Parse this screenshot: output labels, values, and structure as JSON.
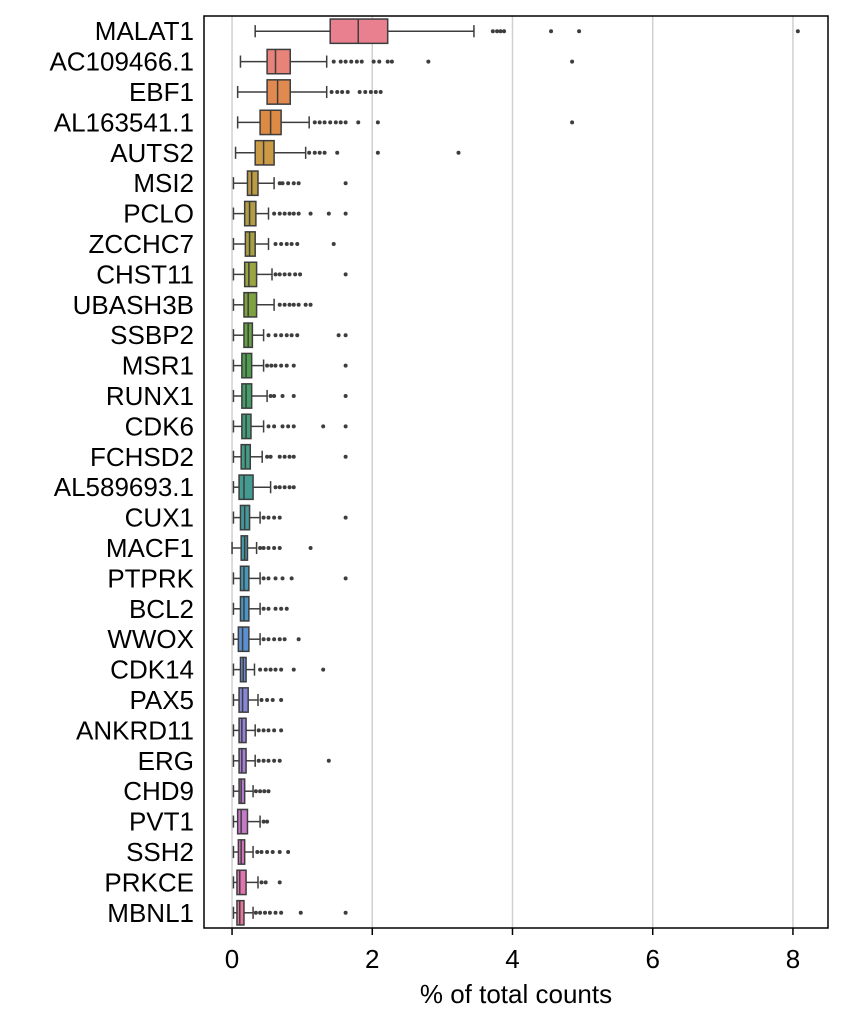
{
  "chart_data": {
    "type": "box",
    "title": "",
    "xlabel": "% of total counts",
    "ylabel": "",
    "xlim": [
      -0.4,
      8.5
    ],
    "xticks": [
      0,
      2,
      4,
      6,
      8
    ],
    "grid": "vertical",
    "legend": "none",
    "genes": [
      {
        "name": "MALAT1",
        "color": "#e8808f",
        "whisker_low": 0.33,
        "q1": 1.4,
        "median": 1.8,
        "q3": 2.22,
        "whisker_high": 3.45,
        "outliers": [
          3.72,
          3.78,
          3.83,
          3.88,
          4.55,
          4.95,
          8.07
        ]
      },
      {
        "name": "AC109466.1",
        "color": "#e8837a",
        "whisker_low": 0.12,
        "q1": 0.5,
        "median": 0.62,
        "q3": 0.83,
        "whisker_high": 1.35,
        "outliers": [
          1.45,
          1.55,
          1.62,
          1.7,
          1.78,
          1.85,
          2.02,
          2.1,
          2.22,
          2.28,
          2.8,
          4.85
        ]
      },
      {
        "name": "EBF1",
        "color": "#e08a4f",
        "whisker_low": 0.08,
        "q1": 0.5,
        "median": 0.65,
        "q3": 0.83,
        "whisker_high": 1.35,
        "outliers": [
          1.42,
          1.5,
          1.57,
          1.65,
          1.82,
          1.9,
          1.98,
          2.05,
          2.12
        ]
      },
      {
        "name": "AL163541.1",
        "color": "#dc8a44",
        "whisker_low": 0.08,
        "q1": 0.4,
        "median": 0.55,
        "q3": 0.7,
        "whisker_high": 1.1,
        "outliers": [
          1.18,
          1.25,
          1.32,
          1.4,
          1.48,
          1.55,
          1.62,
          1.8,
          2.08,
          4.85
        ]
      },
      {
        "name": "AUTS2",
        "color": "#cb9a45",
        "whisker_low": 0.05,
        "q1": 0.33,
        "median": 0.45,
        "q3": 0.6,
        "whisker_high": 1.05,
        "outliers": [
          1.1,
          1.18,
          1.25,
          1.32,
          1.5,
          2.08,
          3.23
        ]
      },
      {
        "name": "MSI2",
        "color": "#bd9b44",
        "whisker_low": 0.02,
        "q1": 0.22,
        "median": 0.28,
        "q3": 0.37,
        "whisker_high": 0.6,
        "outliers": [
          0.68,
          0.72,
          0.8,
          0.88,
          0.95,
          1.62
        ]
      },
      {
        "name": "PCLO",
        "color": "#b29d43",
        "whisker_low": 0.02,
        "q1": 0.18,
        "median": 0.25,
        "q3": 0.34,
        "whisker_high": 0.52,
        "outliers": [
          0.6,
          0.68,
          0.75,
          0.82,
          0.88,
          0.95,
          1.12,
          1.38,
          1.62
        ]
      },
      {
        "name": "ZCCHC7",
        "color": "#a8a041",
        "whisker_low": 0.02,
        "q1": 0.19,
        "median": 0.25,
        "q3": 0.33,
        "whisker_high": 0.52,
        "outliers": [
          0.62,
          0.7,
          0.78,
          0.85,
          0.93,
          1.45
        ]
      },
      {
        "name": "CHST11",
        "color": "#9aa440",
        "whisker_low": 0.02,
        "q1": 0.18,
        "median": 0.24,
        "q3": 0.35,
        "whisker_high": 0.57,
        "outliers": [
          0.62,
          0.68,
          0.75,
          0.82,
          0.9,
          0.97,
          1.62
        ]
      },
      {
        "name": "UBASH3B",
        "color": "#7fa240",
        "whisker_low": 0.02,
        "q1": 0.17,
        "median": 0.23,
        "q3": 0.35,
        "whisker_high": 0.6,
        "outliers": [
          0.68,
          0.75,
          0.82,
          0.88,
          0.95,
          1.05,
          1.12
        ]
      },
      {
        "name": "SSBP2",
        "color": "#66a144",
        "whisker_low": 0.02,
        "q1": 0.17,
        "median": 0.23,
        "q3": 0.29,
        "whisker_high": 0.45,
        "outliers": [
          0.52,
          0.62,
          0.7,
          0.78,
          0.85,
          0.93,
          1.52,
          1.62
        ]
      },
      {
        "name": "MSR1",
        "color": "#4e9f4d",
        "whisker_low": 0.02,
        "q1": 0.14,
        "median": 0.2,
        "q3": 0.28,
        "whisker_high": 0.45,
        "outliers": [
          0.5,
          0.56,
          0.62,
          0.7,
          0.78,
          0.88,
          1.62
        ]
      },
      {
        "name": "RUNX1",
        "color": "#449f6a",
        "whisker_low": 0.02,
        "q1": 0.14,
        "median": 0.2,
        "q3": 0.28,
        "whisker_high": 0.5,
        "outliers": [
          0.55,
          0.6,
          0.72,
          0.88,
          1.62
        ]
      },
      {
        "name": "CDK6",
        "color": "#439d7b",
        "whisker_low": 0.02,
        "q1": 0.14,
        "median": 0.2,
        "q3": 0.27,
        "whisker_high": 0.45,
        "outliers": [
          0.52,
          0.6,
          0.72,
          0.8,
          0.88,
          1.3,
          1.62
        ]
      },
      {
        "name": "FCHSD2",
        "color": "#429c86",
        "whisker_low": 0.02,
        "q1": 0.13,
        "median": 0.19,
        "q3": 0.26,
        "whisker_high": 0.43,
        "outliers": [
          0.5,
          0.55,
          0.68,
          0.75,
          0.82,
          0.88,
          1.62
        ]
      },
      {
        "name": "AL589693.1",
        "color": "#439b92",
        "whisker_low": 0.02,
        "q1": 0.1,
        "median": 0.17,
        "q3": 0.3,
        "whisker_high": 0.55,
        "outliers": [
          0.62,
          0.68,
          0.75,
          0.82,
          0.88
        ]
      },
      {
        "name": "CUX1",
        "color": "#439a9d",
        "whisker_low": 0.02,
        "q1": 0.12,
        "median": 0.18,
        "q3": 0.25,
        "whisker_high": 0.4,
        "outliers": [
          0.45,
          0.52,
          0.6,
          0.68,
          1.62
        ]
      },
      {
        "name": "MACF1",
        "color": "#4499a8",
        "whisker_low": 0.0,
        "q1": 0.13,
        "median": 0.18,
        "q3": 0.22,
        "whisker_high": 0.35,
        "outliers": [
          0.4,
          0.45,
          0.52,
          0.6,
          0.68,
          1.12
        ]
      },
      {
        "name": "PTPRK",
        "color": "#4698b6",
        "whisker_low": 0.02,
        "q1": 0.12,
        "median": 0.17,
        "q3": 0.24,
        "whisker_high": 0.4,
        "outliers": [
          0.45,
          0.52,
          0.62,
          0.72,
          0.85,
          1.62
        ]
      },
      {
        "name": "BCL2",
        "color": "#4c95c5",
        "whisker_low": 0.02,
        "q1": 0.12,
        "median": 0.17,
        "q3": 0.24,
        "whisker_high": 0.4,
        "outliers": [
          0.45,
          0.52,
          0.62,
          0.7,
          0.78
        ]
      },
      {
        "name": "WWOX",
        "color": "#5a90d0",
        "whisker_low": 0.02,
        "q1": 0.09,
        "median": 0.15,
        "q3": 0.24,
        "whisker_high": 0.4,
        "outliers": [
          0.45,
          0.52,
          0.6,
          0.68,
          0.75,
          0.95
        ]
      },
      {
        "name": "CDK14",
        "color": "#6f8ad6",
        "whisker_low": 0.02,
        "q1": 0.12,
        "median": 0.16,
        "q3": 0.2,
        "whisker_high": 0.32,
        "outliers": [
          0.4,
          0.48,
          0.55,
          0.62,
          0.7,
          0.88,
          1.3
        ]
      },
      {
        "name": "PAX5",
        "color": "#8787d8",
        "whisker_low": 0.02,
        "q1": 0.1,
        "median": 0.15,
        "q3": 0.23,
        "whisker_high": 0.37,
        "outliers": [
          0.42,
          0.5,
          0.58,
          0.7
        ]
      },
      {
        "name": "ANKRD11",
        "color": "#9983d6",
        "whisker_low": 0.02,
        "q1": 0.1,
        "median": 0.14,
        "q3": 0.2,
        "whisker_high": 0.33,
        "outliers": [
          0.38,
          0.45,
          0.52,
          0.6,
          0.7
        ]
      },
      {
        "name": "ERG",
        "color": "#a97fd4",
        "whisker_low": 0.02,
        "q1": 0.1,
        "median": 0.14,
        "q3": 0.2,
        "whisker_high": 0.33,
        "outliers": [
          0.38,
          0.45,
          0.52,
          0.6,
          0.68,
          1.38
        ]
      },
      {
        "name": "CHD9",
        "color": "#b97ccf",
        "whisker_low": 0.02,
        "q1": 0.1,
        "median": 0.13,
        "q3": 0.18,
        "whisker_high": 0.3,
        "outliers": [
          0.34,
          0.4,
          0.46,
          0.52
        ]
      },
      {
        "name": "PVT1",
        "color": "#c878c8",
        "whisker_low": 0.02,
        "q1": 0.08,
        "median": 0.13,
        "q3": 0.22,
        "whisker_high": 0.4,
        "outliers": [
          0.45,
          0.5
        ]
      },
      {
        "name": "SSH2",
        "color": "#d574bf",
        "whisker_low": 0.02,
        "q1": 0.09,
        "median": 0.13,
        "q3": 0.18,
        "whisker_high": 0.3,
        "outliers": [
          0.36,
          0.42,
          0.5,
          0.58,
          0.68,
          0.8
        ]
      },
      {
        "name": "PRKCE",
        "color": "#df74b0",
        "whisker_low": 0.02,
        "q1": 0.07,
        "median": 0.11,
        "q3": 0.2,
        "whisker_high": 0.37,
        "outliers": [
          0.42,
          0.48,
          0.68
        ]
      },
      {
        "name": "MBNL1",
        "color": "#e678a0",
        "whisker_low": 0.02,
        "q1": 0.07,
        "median": 0.11,
        "q3": 0.17,
        "whisker_high": 0.3,
        "outliers": [
          0.34,
          0.4,
          0.47,
          0.54,
          0.62,
          0.7,
          0.98,
          1.62
        ]
      }
    ]
  }
}
